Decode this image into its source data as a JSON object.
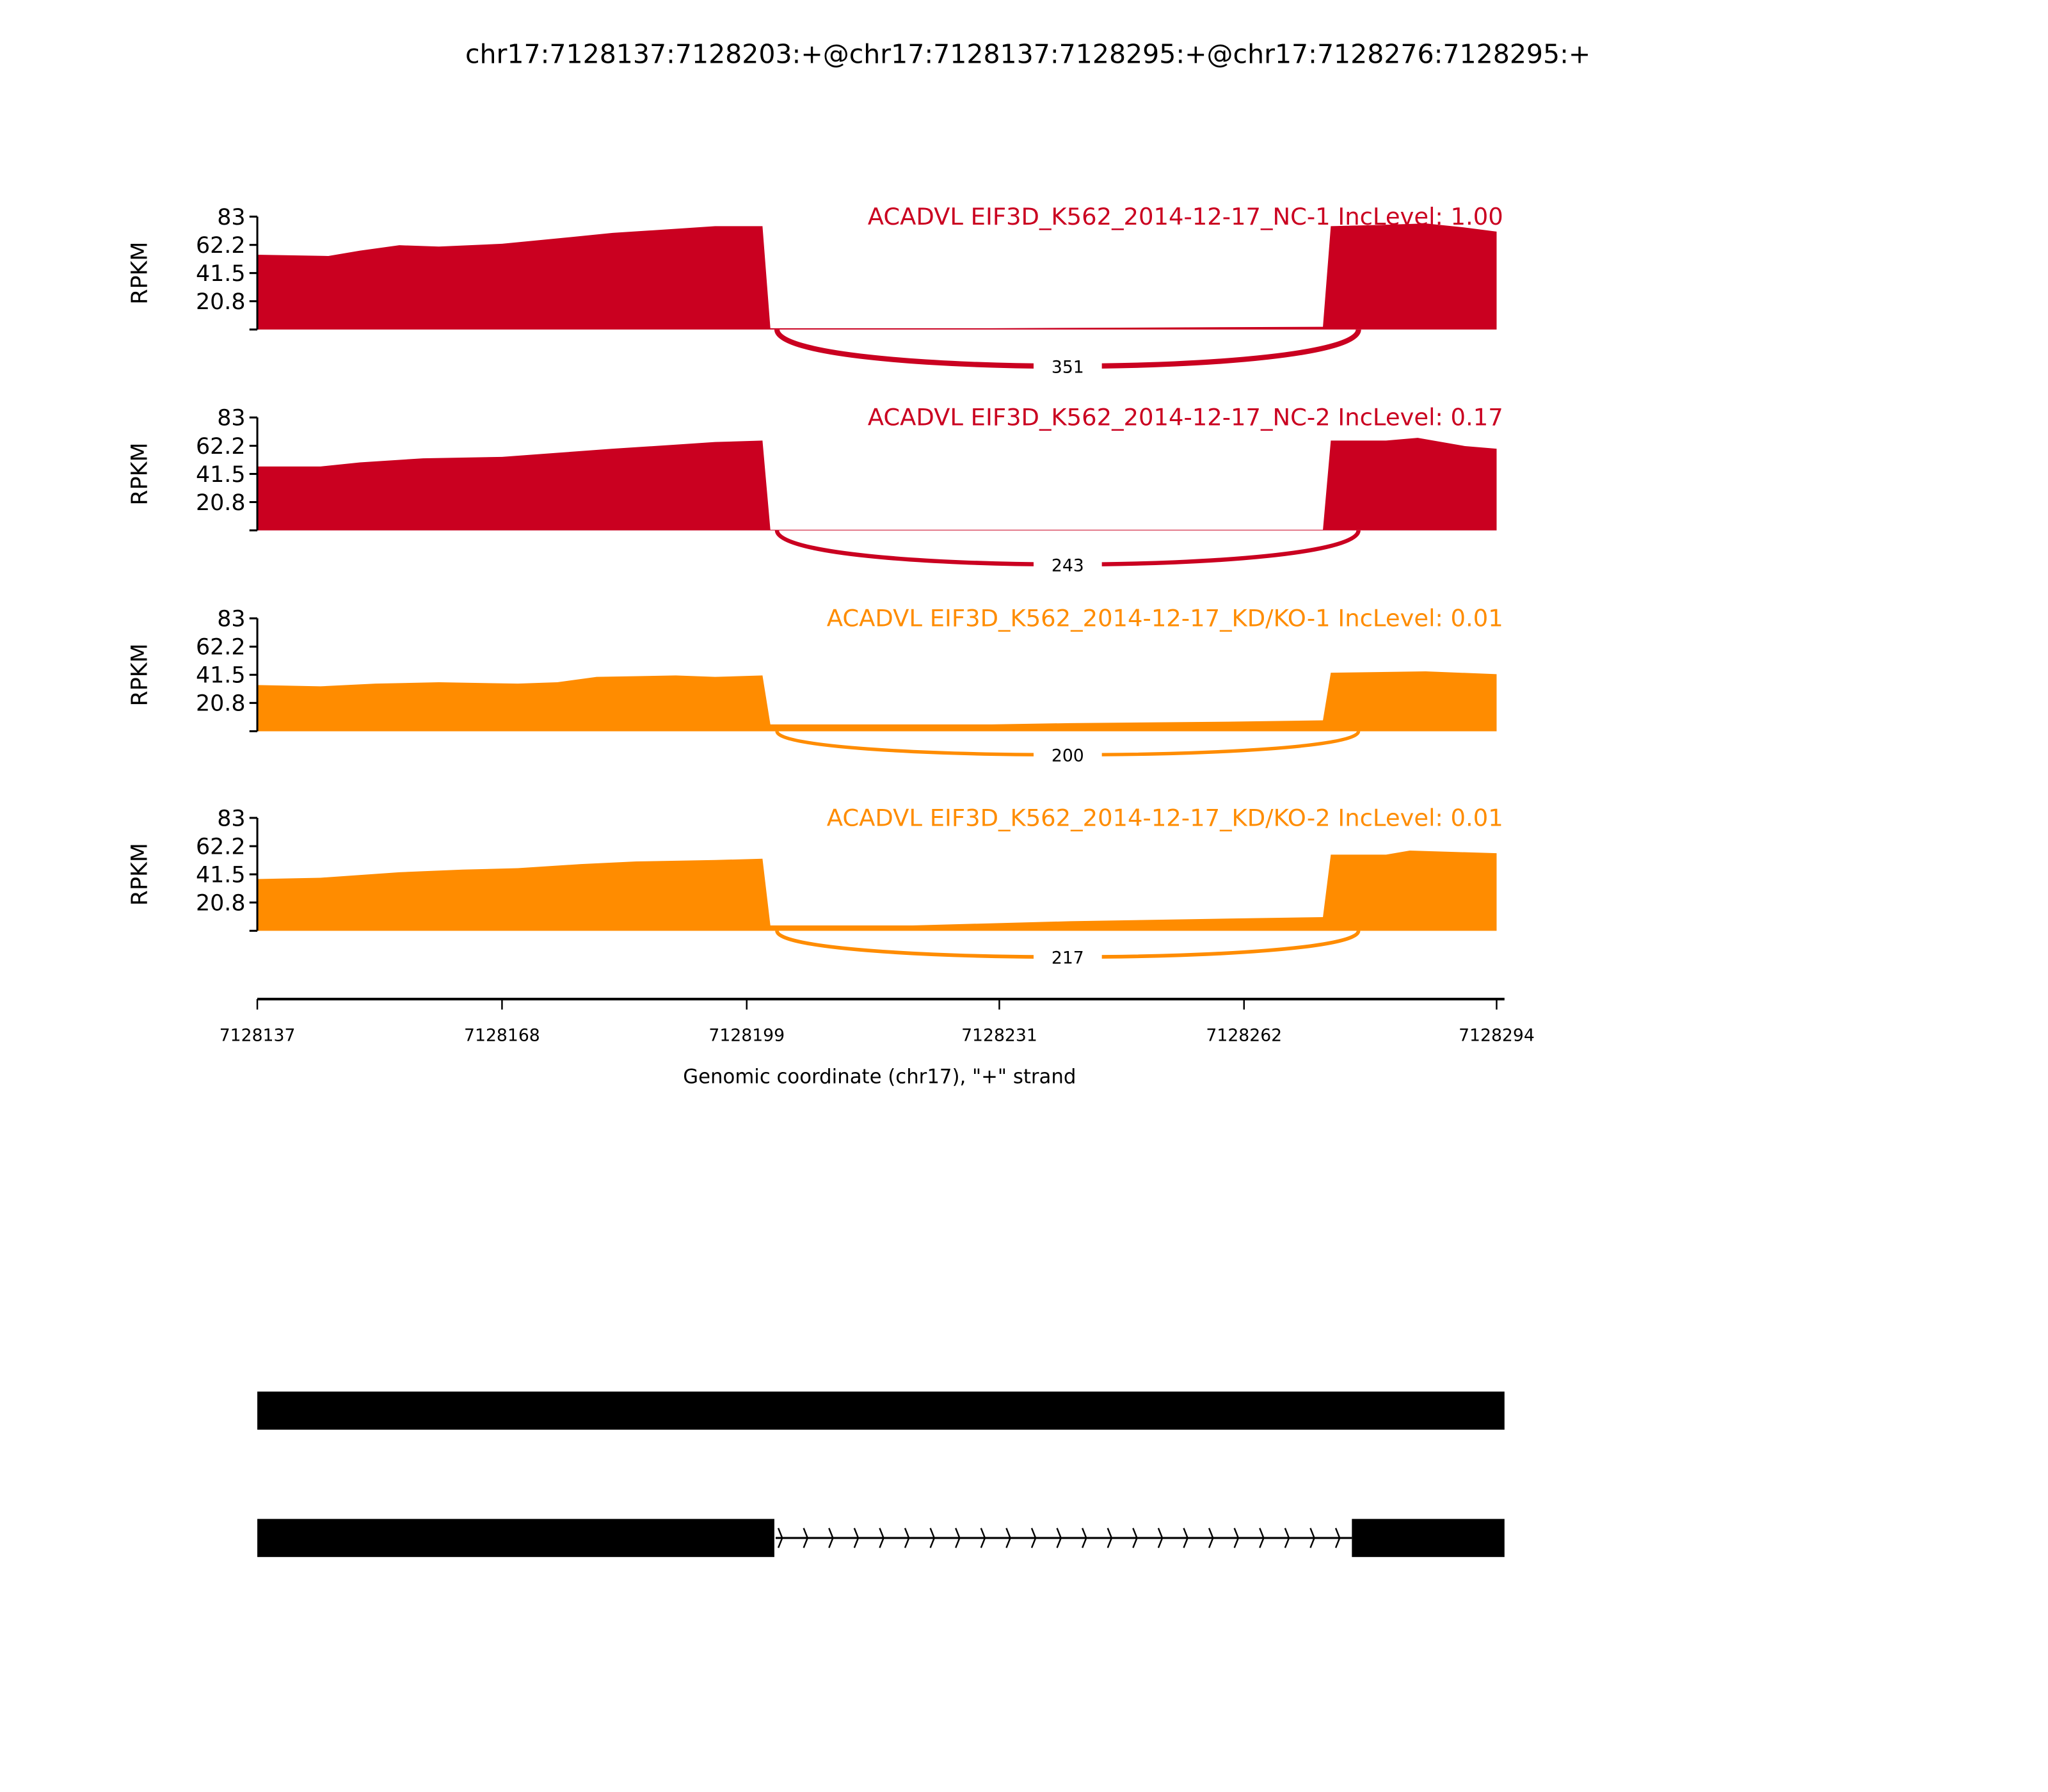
{
  "title": "chr17:7128137:7128203:+@chr17:7128137:7128295:+@chr17:7128276:7128295:+",
  "chart_data": {
    "type": "area",
    "title": "chr17:7128137:7128203:+@chr17:7128137:7128295:+@chr17:7128276:7128295:+",
    "xlabel": "Genomic coordinate (chr17), \"+\" strand",
    "ylabel": "RPKM",
    "xlim": [
      7128137,
      7128294
    ],
    "ylim": [
      0,
      83
    ],
    "x_ticks": [
      "7128137",
      "7128168",
      "7128199",
      "7128231",
      "7128262",
      "7128294"
    ],
    "y_ticks": [
      "20.8",
      "41.5",
      "62.2",
      "83"
    ],
    "grid": false,
    "exons": [
      [
        7128137,
        7128203
      ],
      [
        7128276,
        7128295
      ]
    ],
    "tracks": [
      {
        "label": "ACADVL EIF3D_K562_2014-12-17_NC-1 IncLevel: 1.00",
        "color": "#ca0020",
        "junction_count": "351",
        "coverage": [
          [
            7128137,
            55
          ],
          [
            7128146,
            54
          ],
          [
            7128150,
            58
          ],
          [
            7128155,
            62
          ],
          [
            7128160,
            61
          ],
          [
            7128168,
            63
          ],
          [
            7128175,
            67
          ],
          [
            7128182,
            71
          ],
          [
            7128190,
            74
          ],
          [
            7128195,
            76
          ],
          [
            7128201,
            76
          ],
          [
            7128202,
            1
          ],
          [
            7128230,
            1
          ],
          [
            7128272,
            2
          ],
          [
            7128273,
            76
          ],
          [
            7128280,
            77
          ],
          [
            7128285,
            78
          ],
          [
            7128290,
            75
          ],
          [
            7128294,
            72
          ]
        ]
      },
      {
        "label": "ACADVL EIF3D_K562_2014-12-17_NC-2 IncLevel: 0.17",
        "color": "#ca0020",
        "junction_count": "243",
        "coverage": [
          [
            7128137,
            47
          ],
          [
            7128145,
            47
          ],
          [
            7128150,
            50
          ],
          [
            7128158,
            53
          ],
          [
            7128168,
            54
          ],
          [
            7128175,
            57
          ],
          [
            7128182,
            60
          ],
          [
            7128190,
            63
          ],
          [
            7128195,
            65
          ],
          [
            7128201,
            66
          ],
          [
            7128202,
            0.5
          ],
          [
            7128272,
            0.5
          ],
          [
            7128273,
            66
          ],
          [
            7128280,
            66
          ],
          [
            7128284,
            68
          ],
          [
            7128290,
            62
          ],
          [
            7128294,
            60
          ]
        ]
      },
      {
        "label": "ACADVL EIF3D_K562_2014-12-17_KD/KO-1 IncLevel: 0.01",
        "color": "#ff8c00",
        "junction_count": "200",
        "coverage": [
          [
            7128137,
            34
          ],
          [
            7128145,
            33
          ],
          [
            7128152,
            35
          ],
          [
            7128160,
            36
          ],
          [
            7128170,
            35
          ],
          [
            7128175,
            36
          ],
          [
            7128180,
            40
          ],
          [
            7128190,
            41
          ],
          [
            7128195,
            40
          ],
          [
            7128201,
            41
          ],
          [
            7128202,
            5
          ],
          [
            7128230,
            5
          ],
          [
            7128240,
            6
          ],
          [
            7128260,
            7
          ],
          [
            7128272,
            8
          ],
          [
            7128273,
            43
          ],
          [
            7128285,
            44
          ],
          [
            7128294,
            42
          ]
        ]
      },
      {
        "label": "ACADVL EIF3D_K562_2014-12-17_KD/KO-2 IncLevel: 0.01",
        "color": "#ff8c00",
        "junction_count": "217",
        "coverage": [
          [
            7128137,
            38
          ],
          [
            7128145,
            39
          ],
          [
            7128155,
            43
          ],
          [
            7128163,
            45
          ],
          [
            7128170,
            46
          ],
          [
            7128178,
            49
          ],
          [
            7128185,
            51
          ],
          [
            7128195,
            52
          ],
          [
            7128201,
            53
          ],
          [
            7128202,
            4
          ],
          [
            7128220,
            4
          ],
          [
            7128240,
            7
          ],
          [
            7128260,
            9
          ],
          [
            7128272,
            10
          ],
          [
            7128273,
            56
          ],
          [
            7128280,
            56
          ],
          [
            7128283,
            59
          ],
          [
            7128294,
            57
          ]
        ]
      }
    ],
    "transcripts": [
      {
        "exons": [
          [
            7128137,
            7128295
          ]
        ]
      },
      {
        "exons": [
          [
            7128137,
            7128203
          ],
          [
            7128276,
            7128295
          ]
        ]
      }
    ]
  }
}
